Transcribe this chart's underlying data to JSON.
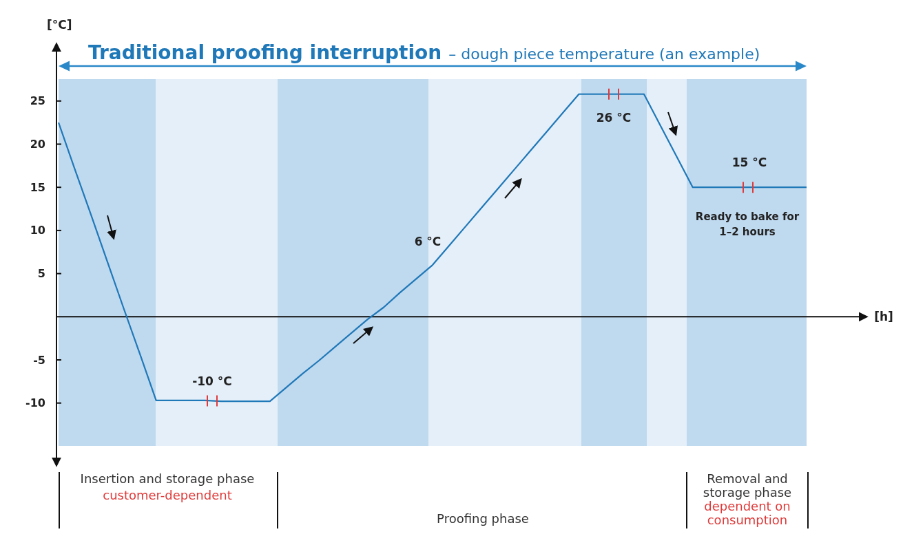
{
  "chart_data": {
    "type": "line",
    "title": "Traditional proofing interruption",
    "subtitle": "– dough piece temperature (an example)",
    "ylabel": "[°C]",
    "categories": [
      null,
      null,
      null,
      null,
      null,
      null,
      null,
      null,
      null,
      null,
      null,
      null,
      null,
      null,
      null,
      null,
      null,
      null,
      null,
      null,
      null,
      null,
      null,
      null,
      null,
      null,
      null,
      null,
      null,
      null,
      null,
      null,
      null,
      null,
      null,
      null,
      null,
      null,
      null,
      null,
      null,
      null,
      null,
      null,
      null,
      null,
      null
    ],
    "series": [
      {
        "color": "#1f78b8",
        "values": [
          22.5,
          17.1,
          11.8,
          6.4,
          1.0,
          -4.3,
          -9.7,
          -9.7,
          -9.7,
          -9.7,
          -9.8,
          -9.8,
          -9.8,
          -9.8,
          -8.2,
          -6.6,
          -5.1,
          -3.5,
          -1.9,
          -0.3,
          1.1,
          2.8,
          4.4,
          6.0,
          8.2,
          10.4,
          12.6,
          14.8,
          17.0,
          19.2,
          21.4,
          23.6,
          25.8,
          25.8,
          25.8,
          25.8,
          25.8,
          22.2,
          18.6,
          15.0,
          15,
          15,
          15,
          15,
          15,
          15,
          15
        ]
      }
    ],
    "ylim": [
      -17.2,
      31.6
    ],
    "yticks": [
      -10,
      -5,
      5,
      10,
      15,
      20,
      25
    ],
    "tick_labels": "y",
    "grid": false,
    "marker": "none",
    "line_style": "solid",
    "annotations": [
      {
        "text": "-10 °C",
        "y": -9.7
      },
      {
        "text": "6 °C",
        "y": 6
      },
      {
        "text": "26 °C",
        "y": 25.8
      },
      {
        "text": "15 °C",
        "y": 15
      },
      "Ready to bake for 1–2 hours",
      "Insertion and storage phase",
      "customer-dependent",
      "Proofing phase",
      "Removal and storage phase",
      "dependent on consumption",
      "[h]"
    ]
  }
}
